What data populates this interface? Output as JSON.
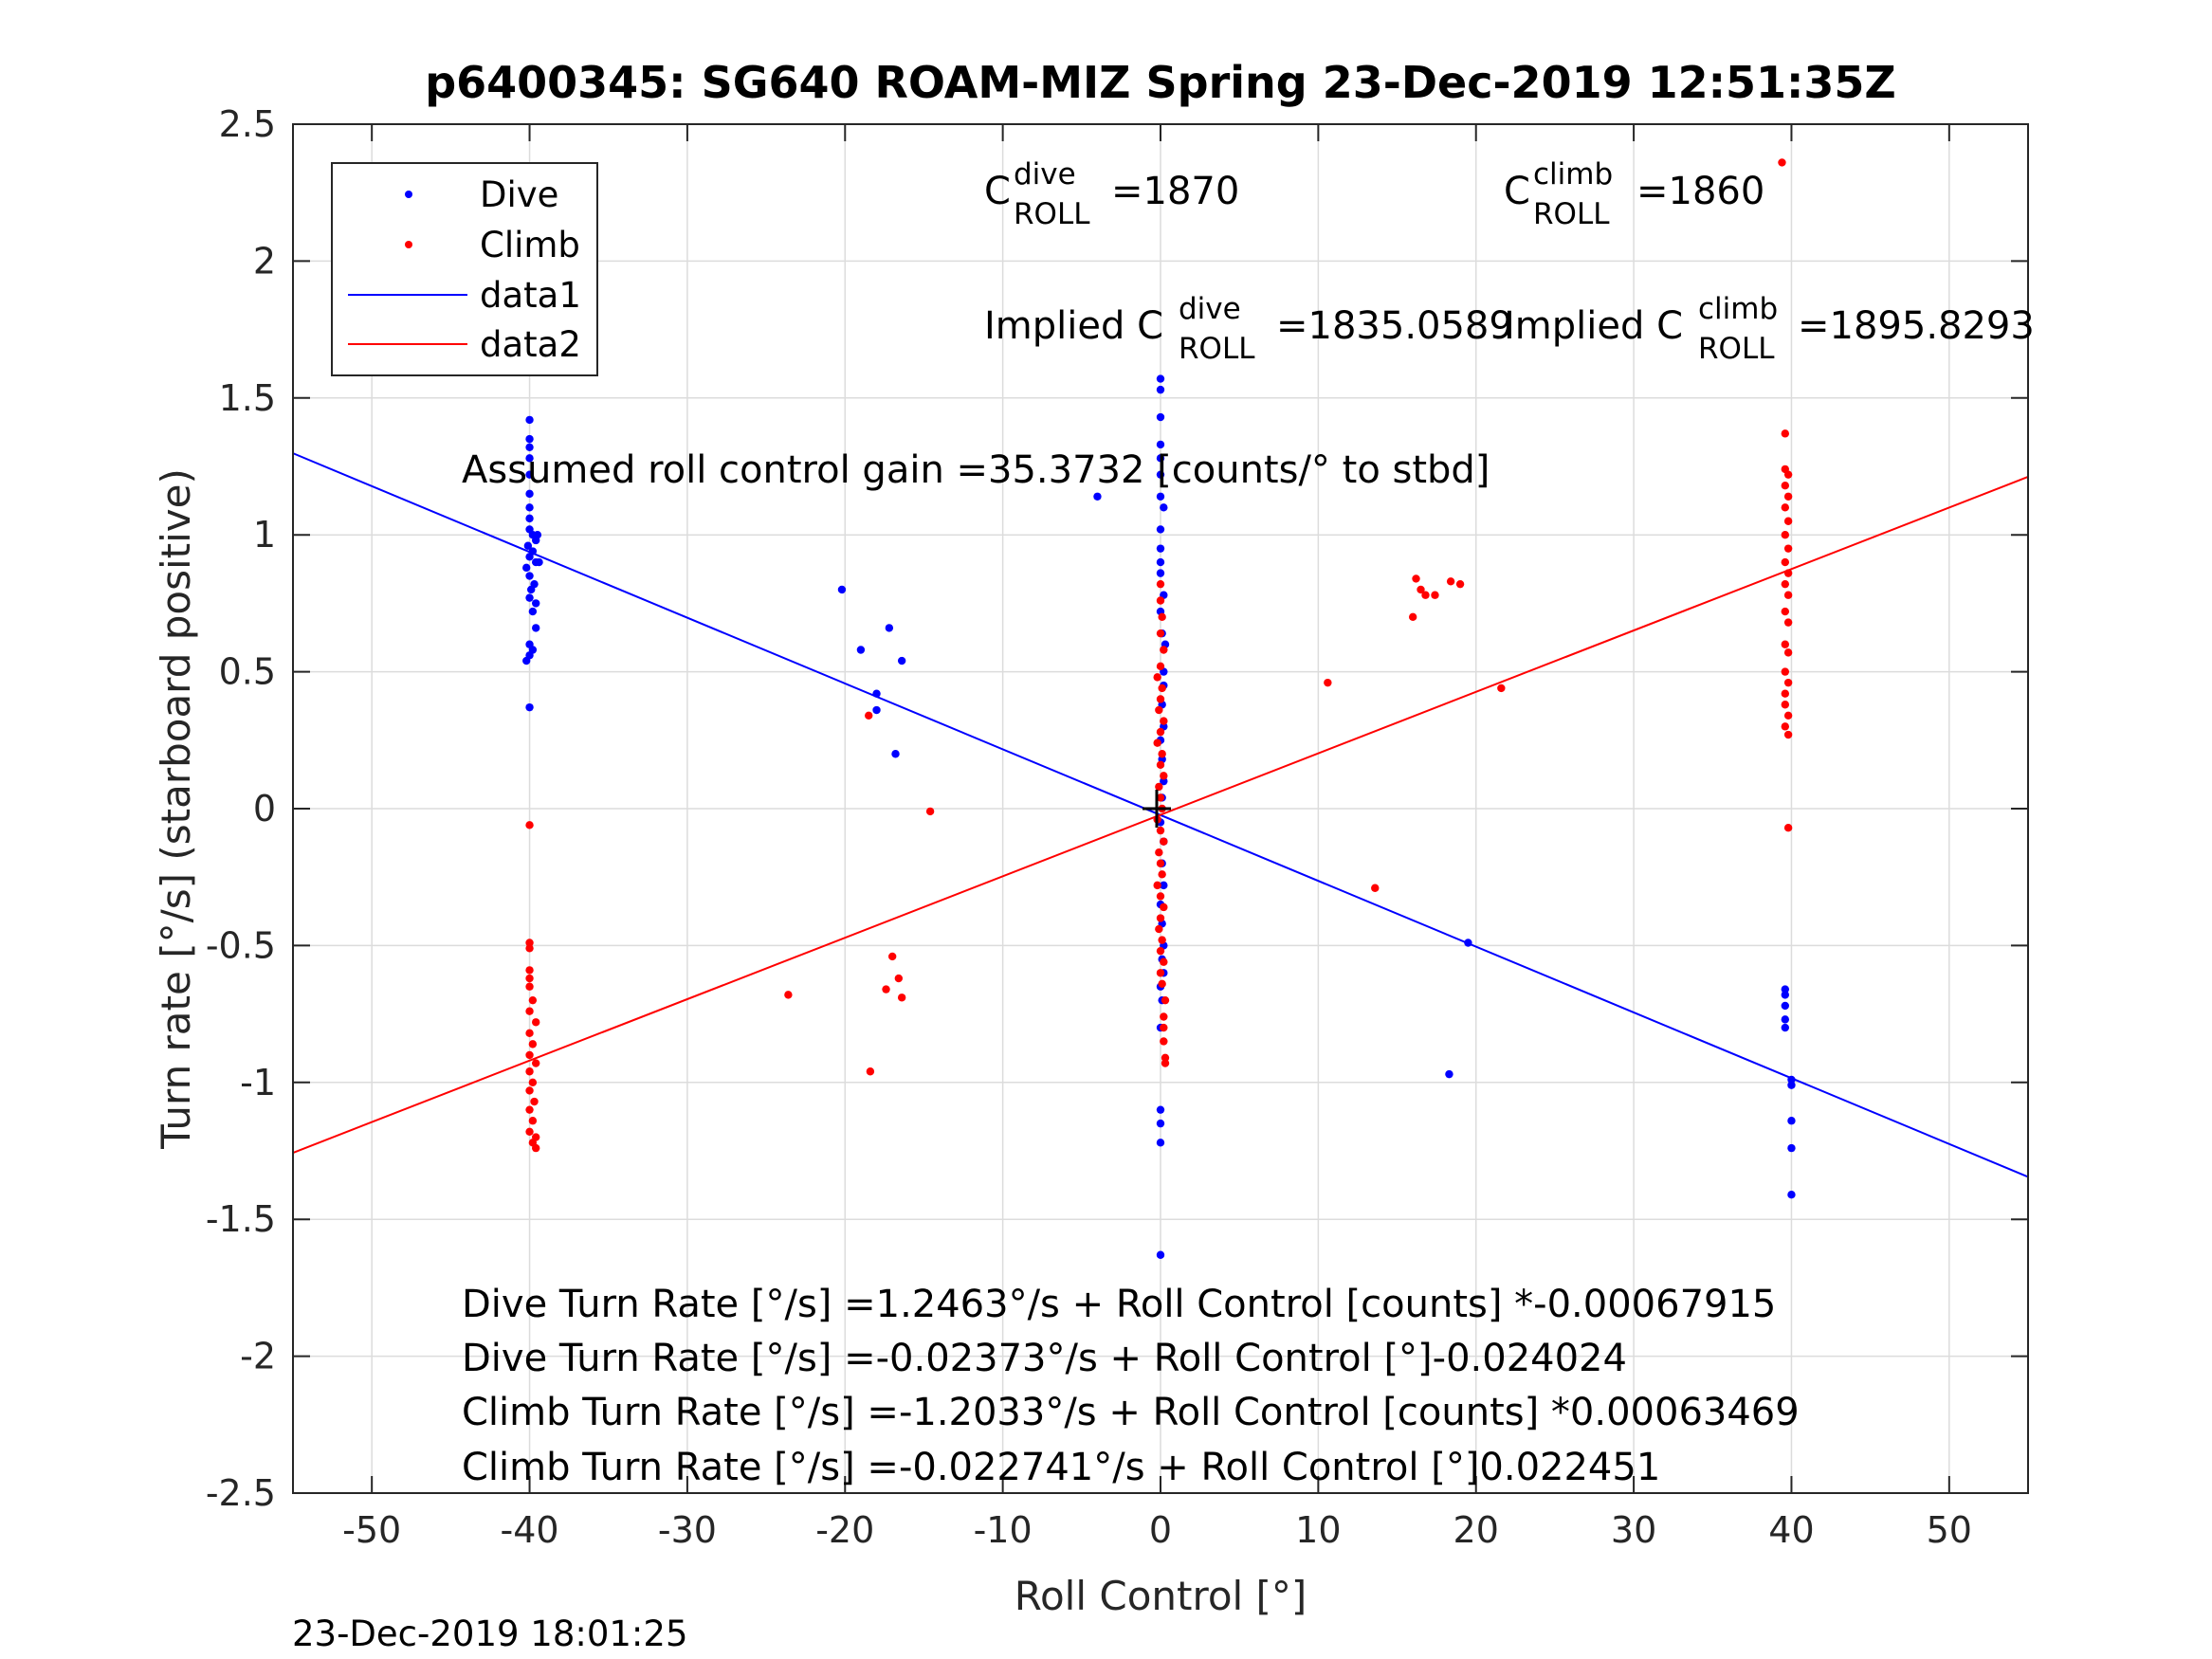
{
  "figure": {
    "title": "p6400345: SG640 ROAM-MIZ Spring 23-Dec-2019 12:51:35Z",
    "timestamp": "23-Dec-2019 18:01:25"
  },
  "annotations": {
    "c_roll_dive": {
      "base": "C",
      "sub": "ROLL",
      "sup": "dive",
      "value": "=1870"
    },
    "c_roll_climb": {
      "base": "C",
      "sub": "ROLL",
      "sup": "climb",
      "value": "=1860"
    },
    "implied_dive": {
      "prefix": "Implied C",
      "sub": "ROLL",
      "sup": "dive",
      "value": "=1835.0589"
    },
    "implied_climb": {
      "prefix": "Implied C",
      "sub": "ROLL",
      "sup": "climb",
      "value": "=1895.8293"
    },
    "gain": "Assumed roll control gain =35.3732 [counts/° to stbd]",
    "eq_lines": [
      "Dive Turn Rate [°/s] =1.2463°/s + Roll Control [counts] *-0.00067915",
      "Dive Turn Rate [°/s] =-0.02373°/s + Roll Control [°]-0.024024",
      "Climb Turn Rate [°/s] =-1.2033°/s + Roll Control [counts] *0.00063469",
      "Climb Turn Rate [°/s] =-0.022741°/s + Roll Control [°]0.022451"
    ]
  },
  "chart_data": {
    "type": "scatter",
    "title": "p6400345: SG640 ROAM-MIZ Spring 23-Dec-2019 12:51:35Z",
    "xlabel": "Roll Control [°]",
    "ylabel": "Turn rate [°/s] (starboard positive)",
    "xlim": [
      -55,
      55
    ],
    "ylim": [
      -2.5,
      2.5
    ],
    "xticks": [
      -50,
      -40,
      -30,
      -20,
      -10,
      0,
      10,
      20,
      30,
      40,
      50
    ],
    "yticks": [
      -2.5,
      -2,
      -1.5,
      -1,
      -0.5,
      0,
      0.5,
      1,
      1.5,
      2,
      2.5
    ],
    "grid": true,
    "legend_position": "top-left",
    "colors": {
      "dive": "#0000ff",
      "climb": "#ff0000",
      "axes": "#262626",
      "grid": "#dcdcdc"
    },
    "series": [
      {
        "name": "Dive",
        "kind": "points",
        "color": "#0000ff",
        "points": [
          [
            -40,
            1.42
          ],
          [
            -40,
            1.35
          ],
          [
            -40,
            1.32
          ],
          [
            -40,
            1.28
          ],
          [
            -40,
            1.22
          ],
          [
            -40,
            1.15
          ],
          [
            -40,
            1.1
          ],
          [
            -40,
            1.06
          ],
          [
            -40,
            1.02
          ],
          [
            -39.8,
            1.0
          ],
          [
            -39.6,
            0.98
          ],
          [
            -40.1,
            0.96
          ],
          [
            -39.8,
            0.94
          ],
          [
            -40,
            0.92
          ],
          [
            -39.6,
            0.9
          ],
          [
            -40.2,
            0.88
          ],
          [
            -40,
            0.85
          ],
          [
            -39.7,
            0.82
          ],
          [
            -39.9,
            0.8
          ],
          [
            -40,
            0.77
          ],
          [
            -39.6,
            0.75
          ],
          [
            -39.8,
            0.72
          ],
          [
            -39.6,
            0.66
          ],
          [
            -40,
            0.6
          ],
          [
            -39.8,
            0.58
          ],
          [
            -40,
            0.56
          ],
          [
            -40.2,
            0.54
          ],
          [
            -40,
            0.37
          ],
          [
            -39.5,
            1.0
          ],
          [
            -39.4,
            0.9
          ],
          [
            -4.0,
            1.14
          ],
          [
            -20.2,
            0.8
          ],
          [
            -17.2,
            0.66
          ],
          [
            -16.4,
            0.54
          ],
          [
            -19.0,
            0.58
          ],
          [
            -18.0,
            0.42
          ],
          [
            -18.0,
            0.36
          ],
          [
            -16.8,
            0.2
          ],
          [
            0,
            1.57
          ],
          [
            0,
            1.53
          ],
          [
            0,
            1.43
          ],
          [
            0,
            1.33
          ],
          [
            0,
            1.28
          ],
          [
            0,
            1.22
          ],
          [
            0,
            1.14
          ],
          [
            0.2,
            1.1
          ],
          [
            0,
            1.02
          ],
          [
            0,
            0.95
          ],
          [
            0,
            0.9
          ],
          [
            0,
            0.86
          ],
          [
            0.2,
            0.78
          ],
          [
            0,
            0.72
          ],
          [
            0.1,
            0.64
          ],
          [
            0.3,
            0.6
          ],
          [
            0.2,
            0.5
          ],
          [
            0.2,
            0.45
          ],
          [
            0.1,
            0.38
          ],
          [
            0.2,
            0.3
          ],
          [
            0,
            0.25
          ],
          [
            0.1,
            0.18
          ],
          [
            0.2,
            0.1
          ],
          [
            0.1,
            0.04
          ],
          [
            0,
            -0.05
          ],
          [
            0.2,
            -0.12
          ],
          [
            0.1,
            -0.2
          ],
          [
            0.2,
            -0.28
          ],
          [
            0,
            -0.35
          ],
          [
            0.1,
            -0.42
          ],
          [
            0.2,
            -0.5
          ],
          [
            0.1,
            -0.55
          ],
          [
            0.2,
            -0.6
          ],
          [
            0,
            -0.65
          ],
          [
            0.1,
            -0.7
          ],
          [
            0,
            -0.8
          ],
          [
            0,
            -1.1
          ],
          [
            0,
            -1.15
          ],
          [
            0,
            -1.22
          ],
          [
            0,
            -1.63
          ],
          [
            19.5,
            -0.49
          ],
          [
            18.3,
            -0.97
          ],
          [
            39.6,
            -0.66
          ],
          [
            39.6,
            -0.68
          ],
          [
            39.6,
            -0.72
          ],
          [
            39.6,
            -0.77
          ],
          [
            39.6,
            -0.8
          ],
          [
            40,
            -0.99
          ],
          [
            40,
            -1.01
          ],
          [
            40,
            -1.14
          ],
          [
            40,
            -1.24
          ],
          [
            40,
            -1.41
          ]
        ]
      },
      {
        "name": "Climb",
        "kind": "points",
        "color": "#ff0000",
        "points": [
          [
            -40,
            -0.06
          ],
          [
            -40,
            -0.49
          ],
          [
            -40,
            -0.51
          ],
          [
            -40,
            -0.59
          ],
          [
            -40,
            -0.62
          ],
          [
            -40,
            -0.65
          ],
          [
            -39.8,
            -0.7
          ],
          [
            -40,
            -0.74
          ],
          [
            -39.6,
            -0.78
          ],
          [
            -40,
            -0.82
          ],
          [
            -39.8,
            -0.86
          ],
          [
            -40,
            -0.9
          ],
          [
            -39.6,
            -0.93
          ],
          [
            -40,
            -0.96
          ],
          [
            -39.8,
            -1.0
          ],
          [
            -40,
            -1.03
          ],
          [
            -39.7,
            -1.07
          ],
          [
            -40,
            -1.1
          ],
          [
            -39.8,
            -1.14
          ],
          [
            -40,
            -1.18
          ],
          [
            -39.6,
            -1.2
          ],
          [
            -39.8,
            -1.22
          ],
          [
            -39.6,
            -1.24
          ],
          [
            -23.6,
            -0.68
          ],
          [
            -18.4,
            -0.96
          ],
          [
            -18.5,
            0.34
          ],
          [
            -14.6,
            -0.01
          ],
          [
            -17.4,
            -0.66
          ],
          [
            -17.0,
            -0.54
          ],
          [
            -16.6,
            -0.62
          ],
          [
            -16.4,
            -0.69
          ],
          [
            0,
            0.82
          ],
          [
            0,
            0.76
          ],
          [
            0.1,
            0.7
          ],
          [
            0,
            0.64
          ],
          [
            0.2,
            0.58
          ],
          [
            0,
            0.52
          ],
          [
            -0.2,
            0.48
          ],
          [
            0.1,
            0.44
          ],
          [
            0,
            0.4
          ],
          [
            -0.1,
            0.36
          ],
          [
            0.2,
            0.32
          ],
          [
            0,
            0.28
          ],
          [
            -0.2,
            0.24
          ],
          [
            0.1,
            0.2
          ],
          [
            0,
            0.16
          ],
          [
            0.2,
            0.12
          ],
          [
            -0.1,
            0.08
          ],
          [
            0,
            0.04
          ],
          [
            0.1,
            0.0
          ],
          [
            -0.2,
            -0.04
          ],
          [
            0,
            -0.08
          ],
          [
            0.2,
            -0.12
          ],
          [
            -0.1,
            -0.16
          ],
          [
            0,
            -0.2
          ],
          [
            0.1,
            -0.24
          ],
          [
            -0.2,
            -0.28
          ],
          [
            0,
            -0.32
          ],
          [
            0.2,
            -0.36
          ],
          [
            0,
            -0.4
          ],
          [
            -0.1,
            -0.44
          ],
          [
            0.1,
            -0.48
          ],
          [
            0,
            -0.52
          ],
          [
            0.2,
            -0.56
          ],
          [
            0,
            -0.6
          ],
          [
            0.1,
            -0.64
          ],
          [
            0.3,
            -0.7
          ],
          [
            0.2,
            -0.76
          ],
          [
            0.2,
            -0.8
          ],
          [
            0.2,
            -0.85
          ],
          [
            0.3,
            -0.91
          ],
          [
            0.3,
            -0.93
          ],
          [
            10.6,
            0.46
          ],
          [
            13.6,
            -0.29
          ],
          [
            16.2,
            0.84
          ],
          [
            16.5,
            0.8
          ],
          [
            16.8,
            0.78
          ],
          [
            17.4,
            0.78
          ],
          [
            18.4,
            0.83
          ],
          [
            19.0,
            0.82
          ],
          [
            16.0,
            0.7
          ],
          [
            21.6,
            0.44
          ],
          [
            39.6,
            1.37
          ],
          [
            39.6,
            1.24
          ],
          [
            39.8,
            1.22
          ],
          [
            39.6,
            1.18
          ],
          [
            39.8,
            1.14
          ],
          [
            39.6,
            1.1
          ],
          [
            39.8,
            1.05
          ],
          [
            39.6,
            1.0
          ],
          [
            39.8,
            0.95
          ],
          [
            39.6,
            0.9
          ],
          [
            39.8,
            0.86
          ],
          [
            39.6,
            0.82
          ],
          [
            39.8,
            0.78
          ],
          [
            39.6,
            0.72
          ],
          [
            39.8,
            0.68
          ],
          [
            39.6,
            0.6
          ],
          [
            39.8,
            0.57
          ],
          [
            39.6,
            0.5
          ],
          [
            39.8,
            0.46
          ],
          [
            39.6,
            0.42
          ],
          [
            39.6,
            0.38
          ],
          [
            39.8,
            0.34
          ],
          [
            39.6,
            0.3
          ],
          [
            39.8,
            0.27
          ],
          [
            39.8,
            -0.07
          ],
          [
            39.4,
            2.36
          ]
        ]
      },
      {
        "name": "data1",
        "kind": "line",
        "color": "#0000ff",
        "points": [
          [
            -55,
            1.298
          ],
          [
            55,
            -1.345
          ]
        ]
      },
      {
        "name": "data2",
        "kind": "line",
        "color": "#ff0000",
        "points": [
          [
            -55,
            -1.257
          ],
          [
            55,
            1.212
          ]
        ]
      }
    ]
  }
}
